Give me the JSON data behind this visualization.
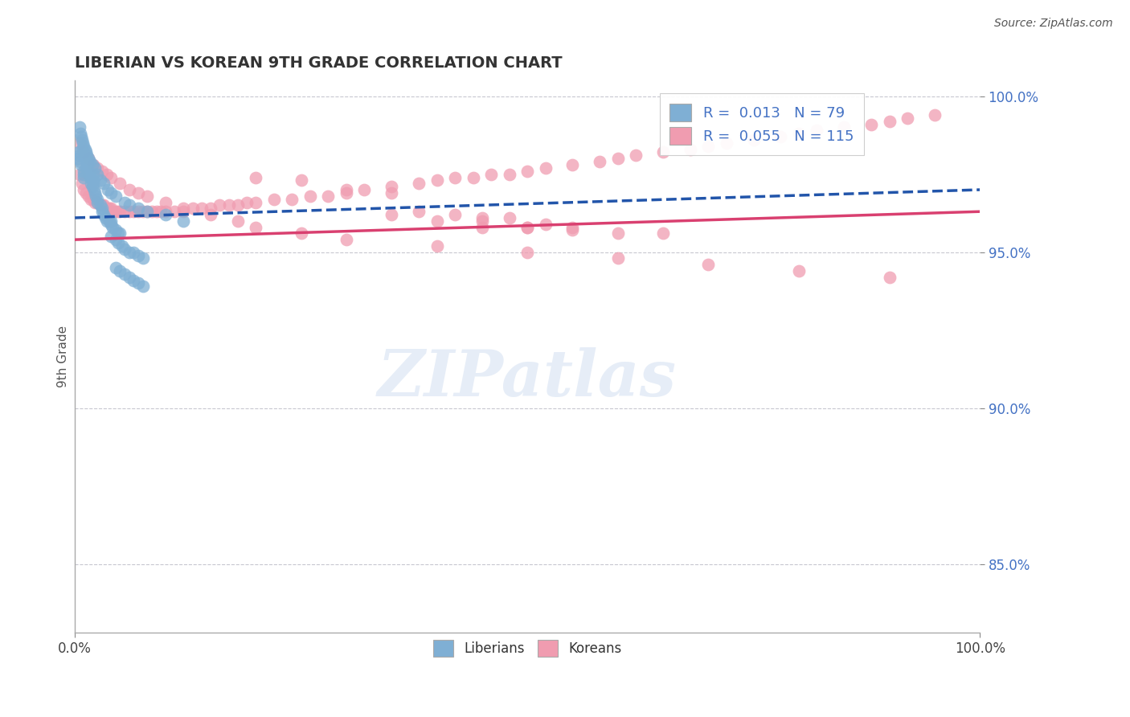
{
  "title": "LIBERIAN VS KOREAN 9TH GRADE CORRELATION CHART",
  "source_text": "Source: ZipAtlas.com",
  "ylabel": "9th Grade",
  "xlim": [
    0.0,
    1.0
  ],
  "ylim": [
    0.828,
    1.005
  ],
  "x_ticks": [
    0.0,
    1.0
  ],
  "x_tick_labels": [
    "0.0%",
    "100.0%"
  ],
  "y_ticks_right": [
    0.85,
    0.9,
    0.95,
    1.0
  ],
  "y_tick_labels_right": [
    "85.0%",
    "90.0%",
    "95.0%",
    "100.0%"
  ],
  "liberian_color": "#7fafd4",
  "korean_color": "#f09cb0",
  "liberian_line_color": "#2255aa",
  "korean_line_color": "#d94070",
  "R_liberian": 0.013,
  "N_liberian": 79,
  "R_korean": 0.055,
  "N_korean": 115,
  "watermark_text": "ZIPatlas",
  "background_color": "#ffffff",
  "grid_color": "#c8c8d0",
  "lib_trend_start": 0.961,
  "lib_trend_end": 0.97,
  "kor_trend_start": 0.954,
  "kor_trend_end": 0.963,
  "liberian_x": [
    0.003,
    0.004,
    0.005,
    0.006,
    0.007,
    0.008,
    0.01,
    0.01,
    0.01,
    0.012,
    0.013,
    0.014,
    0.015,
    0.016,
    0.017,
    0.018,
    0.019,
    0.02,
    0.02,
    0.02,
    0.021,
    0.022,
    0.023,
    0.025,
    0.025,
    0.028,
    0.03,
    0.03,
    0.032,
    0.034,
    0.035,
    0.038,
    0.04,
    0.04,
    0.042,
    0.045,
    0.048,
    0.05,
    0.005,
    0.006,
    0.007,
    0.008,
    0.009,
    0.01,
    0.011,
    0.012,
    0.013,
    0.015,
    0.017,
    0.019,
    0.022,
    0.025,
    0.028,
    0.032,
    0.036,
    0.04,
    0.045,
    0.055,
    0.06,
    0.07,
    0.08,
    0.1,
    0.12,
    0.04,
    0.045,
    0.048,
    0.052,
    0.055,
    0.06,
    0.065,
    0.07,
    0.075,
    0.045,
    0.05,
    0.055,
    0.06,
    0.065,
    0.07,
    0.075
  ],
  "liberian_y": [
    0.98,
    0.982,
    0.981,
    0.979,
    0.978,
    0.983,
    0.976,
    0.975,
    0.974,
    0.977,
    0.978,
    0.979,
    0.976,
    0.975,
    0.974,
    0.972,
    0.971,
    0.972,
    0.973,
    0.975,
    0.97,
    0.969,
    0.968,
    0.967,
    0.966,
    0.965,
    0.964,
    0.963,
    0.962,
    0.961,
    0.96,
    0.96,
    0.959,
    0.96,
    0.958,
    0.957,
    0.956,
    0.956,
    0.99,
    0.988,
    0.987,
    0.986,
    0.985,
    0.984,
    0.983,
    0.982,
    0.981,
    0.98,
    0.979,
    0.978,
    0.977,
    0.975,
    0.973,
    0.972,
    0.97,
    0.969,
    0.968,
    0.966,
    0.965,
    0.964,
    0.963,
    0.962,
    0.96,
    0.955,
    0.954,
    0.953,
    0.952,
    0.951,
    0.95,
    0.95,
    0.949,
    0.948,
    0.945,
    0.944,
    0.943,
    0.942,
    0.941,
    0.94,
    0.939
  ],
  "korean_x": [
    0.005,
    0.008,
    0.01,
    0.012,
    0.015,
    0.018,
    0.02,
    0.022,
    0.025,
    0.028,
    0.03,
    0.032,
    0.035,
    0.038,
    0.04,
    0.042,
    0.045,
    0.048,
    0.05,
    0.055,
    0.06,
    0.065,
    0.07,
    0.075,
    0.08,
    0.085,
    0.09,
    0.095,
    0.1,
    0.11,
    0.12,
    0.13,
    0.14,
    0.15,
    0.16,
    0.17,
    0.18,
    0.19,
    0.2,
    0.22,
    0.24,
    0.26,
    0.28,
    0.3,
    0.32,
    0.35,
    0.38,
    0.4,
    0.42,
    0.44,
    0.46,
    0.48,
    0.5,
    0.52,
    0.55,
    0.58,
    0.6,
    0.62,
    0.65,
    0.68,
    0.7,
    0.72,
    0.75,
    0.78,
    0.8,
    0.82,
    0.85,
    0.88,
    0.9,
    0.92,
    0.95,
    0.005,
    0.01,
    0.015,
    0.02,
    0.025,
    0.03,
    0.035,
    0.04,
    0.05,
    0.06,
    0.07,
    0.08,
    0.1,
    0.12,
    0.15,
    0.18,
    0.2,
    0.25,
    0.3,
    0.4,
    0.5,
    0.6,
    0.7,
    0.8,
    0.9,
    0.4,
    0.5,
    0.6,
    0.45,
    0.55,
    0.65,
    0.45,
    0.55,
    0.5,
    0.35,
    0.48,
    0.52,
    0.38,
    0.42,
    0.45,
    0.3,
    0.35,
    0.25,
    0.2
  ],
  "korean_y": [
    0.975,
    0.972,
    0.97,
    0.969,
    0.968,
    0.967,
    0.967,
    0.966,
    0.966,
    0.965,
    0.965,
    0.965,
    0.964,
    0.964,
    0.964,
    0.963,
    0.963,
    0.963,
    0.963,
    0.963,
    0.963,
    0.963,
    0.963,
    0.963,
    0.963,
    0.963,
    0.963,
    0.963,
    0.963,
    0.963,
    0.963,
    0.964,
    0.964,
    0.964,
    0.965,
    0.965,
    0.965,
    0.966,
    0.966,
    0.967,
    0.967,
    0.968,
    0.968,
    0.969,
    0.97,
    0.971,
    0.972,
    0.973,
    0.974,
    0.974,
    0.975,
    0.975,
    0.976,
    0.977,
    0.978,
    0.979,
    0.98,
    0.981,
    0.982,
    0.983,
    0.984,
    0.985,
    0.986,
    0.987,
    0.988,
    0.989,
    0.99,
    0.991,
    0.992,
    0.993,
    0.994,
    0.985,
    0.982,
    0.98,
    0.978,
    0.977,
    0.976,
    0.975,
    0.974,
    0.972,
    0.97,
    0.969,
    0.968,
    0.966,
    0.964,
    0.962,
    0.96,
    0.958,
    0.956,
    0.954,
    0.952,
    0.95,
    0.948,
    0.946,
    0.944,
    0.942,
    0.96,
    0.958,
    0.956,
    0.958,
    0.957,
    0.956,
    0.96,
    0.958,
    0.958,
    0.962,
    0.961,
    0.959,
    0.963,
    0.962,
    0.961,
    0.97,
    0.969,
    0.973,
    0.974
  ]
}
